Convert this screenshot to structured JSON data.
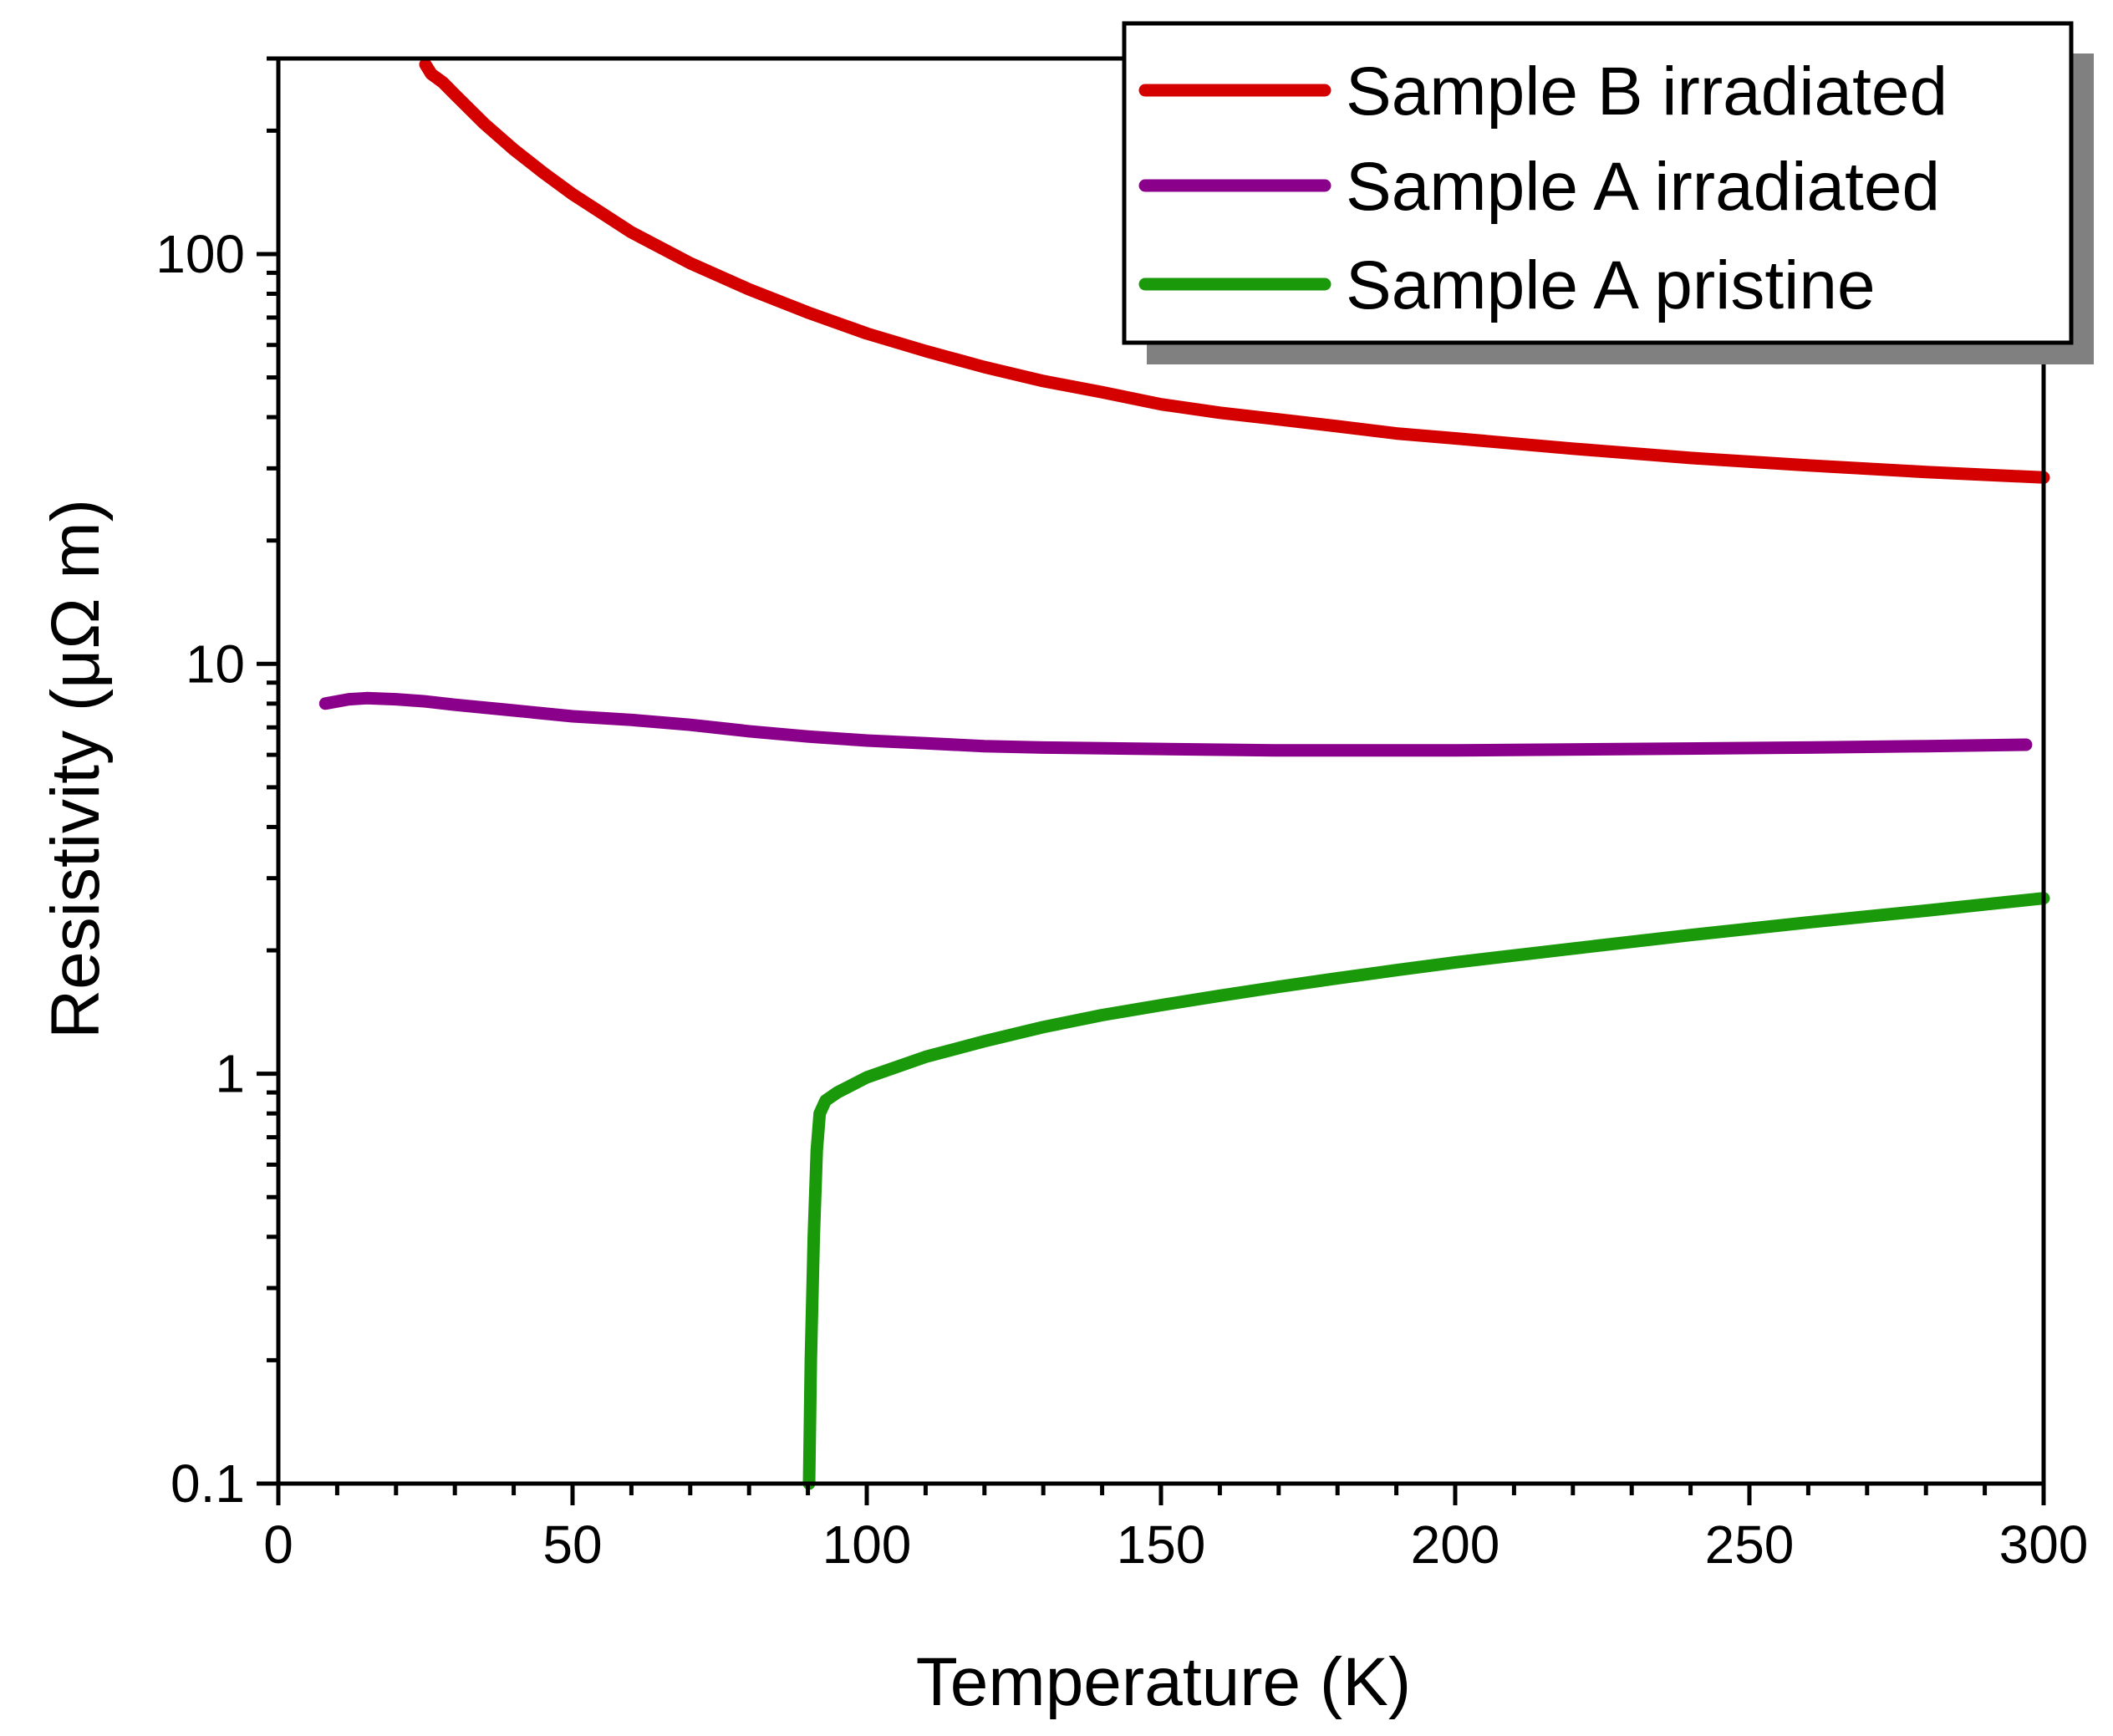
{
  "chart_data": {
    "type": "line",
    "title": "",
    "xlabel": "Temperature  (K)",
    "ylabel": "Resistivity (μΩ m)",
    "xlim": [
      0,
      300
    ],
    "ylim": [
      0.1,
      300
    ],
    "yscale": "log",
    "grid": false,
    "legend_position": "top-right",
    "x_ticks": [
      0,
      50,
      100,
      150,
      200,
      250,
      300
    ],
    "x_tick_labels": [
      "0",
      "50",
      "100",
      "150",
      "200",
      "250",
      "300"
    ],
    "y_ticks": [
      0.1,
      1,
      10,
      100
    ],
    "y_tick_labels": [
      "0.1",
      "1",
      "10",
      "100"
    ],
    "series": [
      {
        "name": "Sample B irradiated",
        "color": "#d40000",
        "x": [
          25,
          26,
          28,
          30,
          35,
          40,
          45,
          50,
          60,
          70,
          80,
          90,
          100,
          110,
          120,
          130,
          140,
          150,
          160,
          170,
          180,
          190,
          200,
          220,
          240,
          260,
          280,
          300
        ],
        "y": [
          290,
          275,
          262,
          245,
          208,
          180,
          158,
          140,
          113,
          95,
          82,
          72,
          64,
          58,
          53,
          49,
          46,
          43,
          41,
          39.5,
          38,
          36.5,
          35.5,
          33.5,
          31.8,
          30.5,
          29.4,
          28.5
        ]
      },
      {
        "name": "Sample A irradiated",
        "color": "#8b008b",
        "x": [
          8,
          12,
          15,
          20,
          25,
          30,
          40,
          50,
          60,
          70,
          80,
          90,
          100,
          110,
          120,
          130,
          150,
          170,
          200,
          230,
          260,
          280,
          297
        ],
        "y": [
          8.0,
          8.2,
          8.25,
          8.2,
          8.1,
          7.95,
          7.7,
          7.45,
          7.3,
          7.1,
          6.85,
          6.65,
          6.5,
          6.4,
          6.3,
          6.25,
          6.2,
          6.15,
          6.15,
          6.2,
          6.25,
          6.3,
          6.35
        ]
      },
      {
        "name": "Sample A pristine",
        "color": "#1a9a0a",
        "x": [
          90.2,
          90.5,
          91,
          91.5,
          92,
          93,
          95,
          100,
          110,
          120,
          130,
          140,
          150,
          160,
          170,
          180,
          190,
          200,
          220,
          240,
          260,
          280,
          300
        ],
        "y": [
          0.1,
          0.2,
          0.4,
          0.65,
          0.8,
          0.86,
          0.9,
          0.98,
          1.1,
          1.2,
          1.3,
          1.39,
          1.47,
          1.55,
          1.63,
          1.71,
          1.79,
          1.87,
          2.02,
          2.18,
          2.34,
          2.5,
          2.68
        ]
      }
    ]
  }
}
